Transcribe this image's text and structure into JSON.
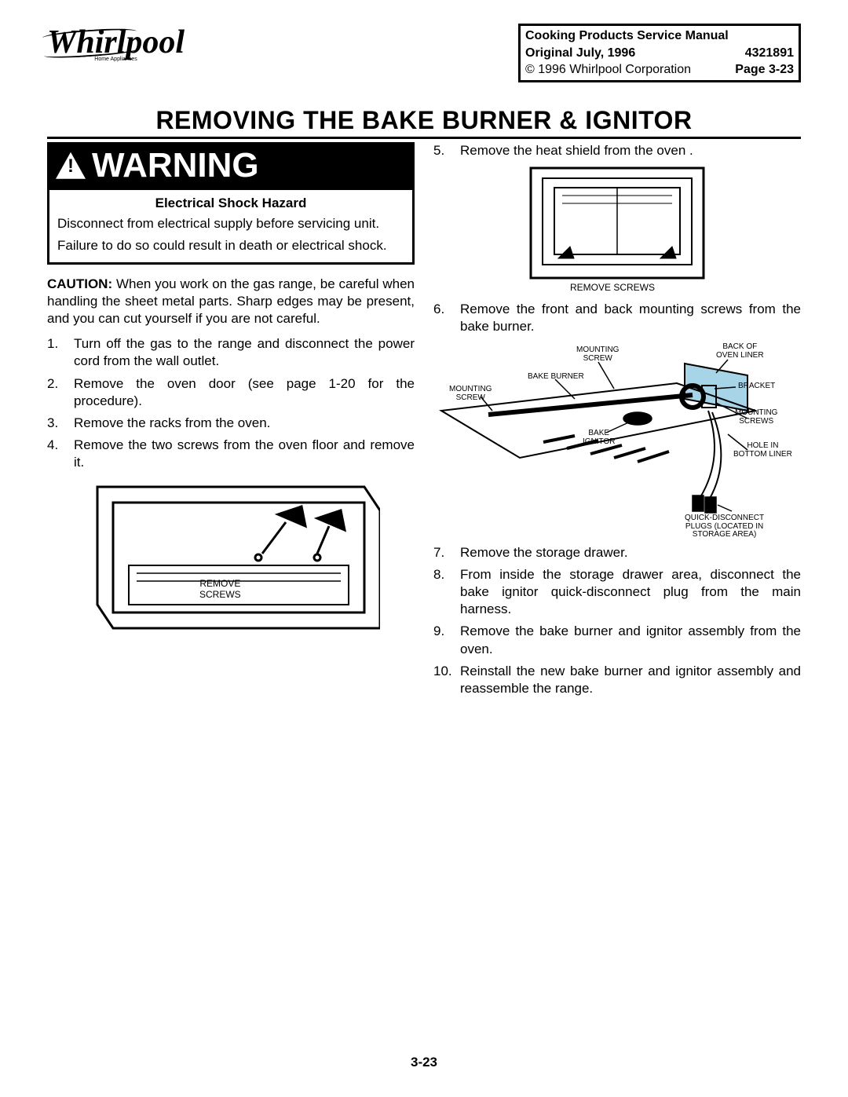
{
  "header": {
    "brand": "Whirlpool",
    "brand_sub": "Home Appliances",
    "info": {
      "line1_left": "Cooking Products Service Manual",
      "line2_left": "Original     July, 1996",
      "line2_right": "4321891",
      "line3_left": "© 1996 Whirlpool Corporation",
      "line3_right": "Page 3-23"
    }
  },
  "title": "REMOVING THE BAKE BURNER & IGNITOR",
  "warning": {
    "header": "WARNING",
    "hazard_title": "Electrical Shock Hazard",
    "body1": "Disconnect from electrical supply before servicing unit.",
    "body2": "Failure to do so could result in death or electrical shock."
  },
  "caution_label": "CAUTION:",
  "caution_text": " When you work on the gas range, be careful when handling the sheet metal parts. Sharp edges may be present, and you can cut yourself if you are not careful.",
  "steps_left": [
    {
      "n": "1.",
      "t": "Turn off the gas to the range and disconnect the power cord from the wall outlet."
    },
    {
      "n": "2.",
      "t": "Remove the oven door (see page 1-20 for the procedure)."
    },
    {
      "n": "3.",
      "t": "Remove the racks from the oven."
    },
    {
      "n": "4.",
      "t": "Remove the two screws from the oven floor and remove it."
    }
  ],
  "fig1_label": "REMOVE\nSCREWS",
  "steps_right_a": [
    {
      "n": "5.",
      "t": "Remove the heat shield from the oven ."
    }
  ],
  "fig2_label": "REMOVE  SCREWS",
  "steps_right_b": [
    {
      "n": "6.",
      "t": "Remove the front and back mounting screws from the bake burner."
    }
  ],
  "diagram_labels": {
    "mounting_screw_top": "MOUNTING\nSCREW",
    "bake_burner": "BAKE BURNER",
    "mounting_screw_left": "MOUNTING\nSCREW",
    "bake_ignitor": "BAKE\nIGNITOR",
    "back_of_oven_liner": "BACK OF\nOVEN LINER",
    "bracket": "BRACKET",
    "mounting_screws_right": "MOUNTING\nSCREWS",
    "hole_in_bottom_liner": "HOLE IN\nBOTTOM LINER",
    "quick_disconnect": "QUICK-DISCONNECT\nPLUGS (LOCATED IN\nSTORAGE AREA)"
  },
  "steps_right_c": [
    {
      "n": "7.",
      "t": "Remove the storage drawer."
    },
    {
      "n": "8.",
      "t": "From inside the storage drawer area, disconnect the bake ignitor quick-disconnect plug from the main harness."
    },
    {
      "n": "9.",
      "t": "Remove the bake burner and ignitor assembly from the oven."
    },
    {
      "n": "10.",
      "t": "Reinstall the new bake burner and ignitor assembly and reassemble the range."
    }
  ],
  "footer_page": "3-23",
  "style": {
    "page_bg": "#ffffff",
    "text_color": "#000000",
    "title_fontsize": 32,
    "body_fontsize": 17,
    "label_fontsize": 10,
    "accent_highlight": "#a8d4e8"
  }
}
